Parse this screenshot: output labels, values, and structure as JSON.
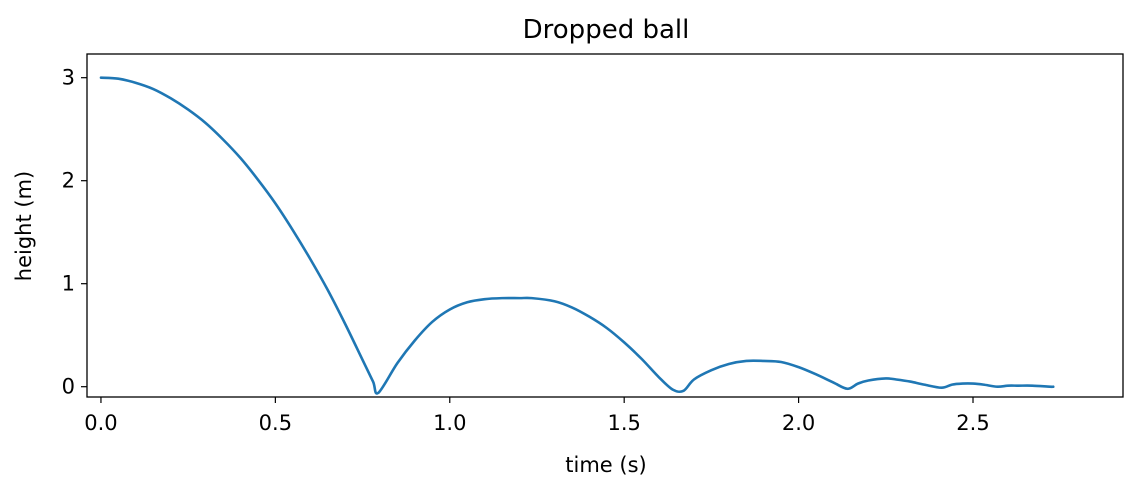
{
  "chart_data": {
    "type": "line",
    "title": "Dropped ball",
    "xlabel": "time (s)",
    "ylabel": "height (m)",
    "xlim": [
      -0.04,
      2.93
    ],
    "ylim": [
      -0.1,
      3.23
    ],
    "x_ticks": [
      0.0,
      0.5,
      1.0,
      1.5,
      2.0,
      2.5
    ],
    "x_tick_labels": [
      "0.0",
      "0.5",
      "1.0",
      "1.5",
      "2.0",
      "2.5"
    ],
    "y_ticks": [
      0,
      1,
      2,
      3
    ],
    "y_tick_labels": [
      "0",
      "1",
      "2",
      "3"
    ],
    "grid": false,
    "legend": "none",
    "series": [
      {
        "color": "#1f77b4",
        "x": [
          0.0,
          0.05,
          0.1,
          0.15,
          0.2,
          0.25,
          0.3,
          0.35,
          0.4,
          0.45,
          0.5,
          0.55,
          0.6,
          0.65,
          0.7,
          0.75,
          0.78,
          0.795,
          0.85,
          0.9,
          0.95,
          1.0,
          1.05,
          1.1,
          1.15,
          1.2,
          1.235,
          1.3,
          1.35,
          1.4,
          1.45,
          1.5,
          1.55,
          1.6,
          1.64,
          1.67,
          1.7,
          1.75,
          1.8,
          1.85,
          1.9,
          1.95,
          2.0,
          2.05,
          2.1,
          2.14,
          2.17,
          2.2,
          2.25,
          2.28,
          2.32,
          2.36,
          2.41,
          2.44,
          2.47,
          2.5,
          2.53,
          2.57,
          2.6,
          2.63,
          2.67,
          2.72,
          2.73
        ],
        "y": [
          3.0,
          2.99,
          2.95,
          2.89,
          2.8,
          2.69,
          2.56,
          2.4,
          2.22,
          2.01,
          1.78,
          1.52,
          1.24,
          0.94,
          0.61,
          0.26,
          0.05,
          -0.06,
          0.23,
          0.45,
          0.63,
          0.75,
          0.82,
          0.85,
          0.86,
          0.86,
          0.86,
          0.83,
          0.77,
          0.68,
          0.57,
          0.43,
          0.27,
          0.09,
          -0.03,
          -0.04,
          0.07,
          0.16,
          0.22,
          0.25,
          0.25,
          0.24,
          0.19,
          0.12,
          0.04,
          -0.02,
          0.03,
          0.06,
          0.08,
          0.07,
          0.05,
          0.02,
          -0.01,
          0.02,
          0.03,
          0.03,
          0.02,
          0.0,
          0.01,
          0.01,
          0.01,
          0.0,
          0.0
        ]
      }
    ]
  }
}
